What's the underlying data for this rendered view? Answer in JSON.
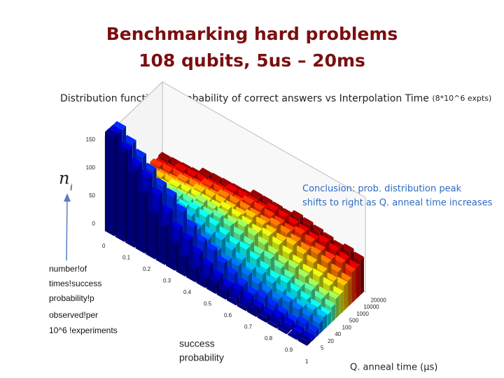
{
  "slide": {
    "title": [
      "Benchmarking hard problems",
      "108 qubits, 5us – 20ms"
    ],
    "caption": "Distribution function of probability of correct answers vs Interpolation Time",
    "caption_note": "(8*10^6 expts)",
    "z_symbol": "n",
    "z_subscript": "i",
    "z_ticks": [
      "150",
      "100",
      "50",
      "0"
    ],
    "x_ticks": [
      "0",
      "0.1",
      "0.2",
      "0.3",
      "0.4",
      "0.5",
      "0.6",
      "0.7",
      "0.8",
      "0.9",
      "1"
    ],
    "y_ticks": [
      "20000",
      "10000",
      "1000",
      "500",
      "100",
      "40",
      "20",
      "5"
    ],
    "conclusion": [
      "Conclusion: prob. distribution peak",
      "shifts to right as Q. anneal time increases"
    ],
    "left_note": [
      "number!of",
      "times!success",
      "probability!p",
      "observed!per",
      "10^6 !experiments"
    ],
    "x_label": [
      "success",
      "probability"
    ],
    "y_label": "Q. anneal time (μs)"
  }
}
